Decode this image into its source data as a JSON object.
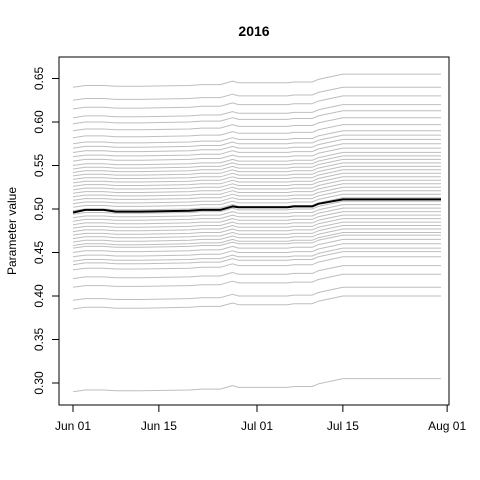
{
  "chart_data": {
    "type": "line",
    "title": "2016",
    "xlabel": "",
    "ylabel": "Parameter value",
    "x_start": "2016-06-01",
    "x_end": "2016-07-31",
    "xlim": [
      "2016-06-01",
      "2016-08-01"
    ],
    "ylim": [
      0.28,
      0.65
    ],
    "x_ticks": [
      {
        "date": "2016-06-01",
        "label": "Jun 01"
      },
      {
        "date": "2016-06-15",
        "label": "Jun 15"
      },
      {
        "date": "2016-07-01",
        "label": "Jul 01"
      },
      {
        "date": "2016-07-15",
        "label": "Jul 15"
      },
      {
        "date": "2016-08-01",
        "label": "Aug 01"
      }
    ],
    "y_ticks": [
      0.3,
      0.35,
      0.4,
      0.45,
      0.5,
      0.55,
      0.6,
      0.65
    ],
    "y_tick_labels": [
      "0.30",
      "0.35",
      "0.40",
      "0.45",
      "0.50",
      "0.55",
      "0.60",
      "0.65"
    ],
    "grey_color": "#bebebe",
    "highlight_color": "#000000",
    "highlight": {
      "dates": [
        "2016-06-01",
        "2016-06-03",
        "2016-06-06",
        "2016-06-08",
        "2016-06-12",
        "2016-06-20",
        "2016-06-22",
        "2016-06-25",
        "2016-06-27",
        "2016-06-28",
        "2016-07-06",
        "2016-07-07",
        "2016-07-10",
        "2016-07-11",
        "2016-07-15",
        "2016-07-31"
      ],
      "values": [
        0.496,
        0.499,
        0.499,
        0.497,
        0.497,
        0.498,
        0.499,
        0.499,
        0.503,
        0.502,
        0.502,
        0.503,
        0.503,
        0.506,
        0.511,
        0.511
      ]
    },
    "grey_levels": [
      0.29,
      0.385,
      0.395,
      0.41,
      0.42,
      0.43,
      0.436,
      0.44,
      0.445,
      0.45,
      0.455,
      0.458,
      0.462,
      0.466,
      0.47,
      0.474,
      0.478,
      0.482,
      0.486,
      0.49,
      0.494,
      0.498,
      0.502,
      0.506,
      0.51,
      0.514,
      0.518,
      0.522,
      0.526,
      0.53,
      0.534,
      0.538,
      0.542,
      0.546,
      0.55,
      0.555,
      0.56,
      0.565,
      0.57,
      0.575,
      0.582,
      0.59,
      0.598,
      0.605,
      0.615,
      0.625,
      0.64
    ],
    "grey_shape": {
      "dates": [
        "2016-06-01",
        "2016-06-03",
        "2016-06-06",
        "2016-06-08",
        "2016-06-12",
        "2016-06-20",
        "2016-06-22",
        "2016-06-25",
        "2016-06-27",
        "2016-06-28",
        "2016-07-06",
        "2016-07-07",
        "2016-07-10",
        "2016-07-11",
        "2016-07-15",
        "2016-07-31"
      ],
      "offsets": [
        0.0,
        0.002,
        0.002,
        0.001,
        0.001,
        0.002,
        0.003,
        0.003,
        0.007,
        0.005,
        0.005,
        0.006,
        0.006,
        0.009,
        0.015,
        0.015
      ]
    },
    "grid": false,
    "legend": "none"
  }
}
